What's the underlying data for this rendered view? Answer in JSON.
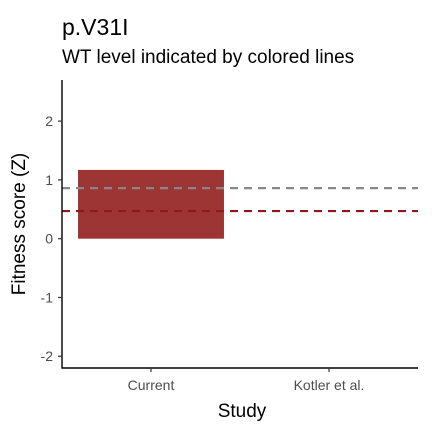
{
  "chart_data": {
    "type": "bar",
    "title": "p.V31I",
    "subtitle": "WT level indicated by colored lines",
    "xlabel": "Study",
    "ylabel": "Fitness score (Z)",
    "categories": [
      "Current",
      "Kotler et al."
    ],
    "values": [
      1.17,
      null
    ],
    "bar_color": "#9e3535",
    "ylim": [
      -2.2,
      2.7
    ],
    "yticks": [
      -2,
      -1,
      0,
      1,
      2
    ],
    "ytick_labels": [
      "-2",
      "-1",
      "0",
      "1",
      "2"
    ],
    "reference_lines": [
      {
        "y": 0.86,
        "color": "#888888",
        "style": "dashed"
      },
      {
        "y": 0.47,
        "color": "#8b1a1a",
        "style": "dashed"
      }
    ],
    "grid": false,
    "legend": "none"
  }
}
